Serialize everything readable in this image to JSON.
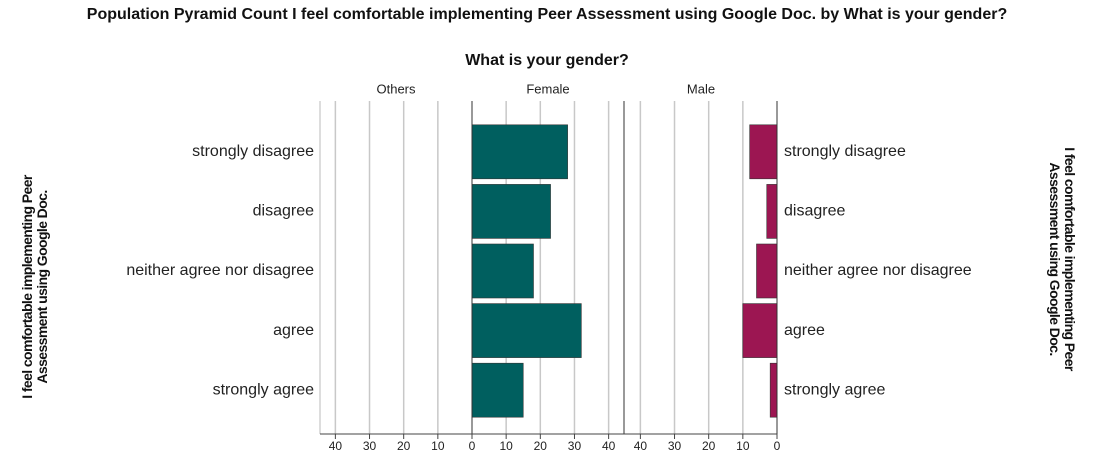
{
  "chart_data": {
    "type": "population-pyramid",
    "title": "Population Pyramid Count I feel comfortable implementing Peer Assessment using Google Doc.  by What is your gender?",
    "subtitle": "What is your gender?",
    "y_label": "I feel comfortable implementing Peer Assessment using Google Doc.",
    "categories": [
      "strongly disagree",
      "disagree",
      "neither agree nor disagree",
      "agree",
      "strongly agree"
    ],
    "series": [
      {
        "name": "Others",
        "color": "#005f5f",
        "values": [
          0,
          0,
          0,
          0,
          0
        ]
      },
      {
        "name": "Female",
        "color": "#005f5f",
        "values": [
          28,
          23,
          18,
          32,
          15
        ]
      },
      {
        "name": "Male",
        "color": "#9c1652",
        "values": [
          8,
          3,
          6,
          10,
          2
        ]
      }
    ],
    "xlim": [
      0,
      44.5
    ],
    "xticks": [
      0,
      10,
      20,
      30,
      40
    ]
  }
}
